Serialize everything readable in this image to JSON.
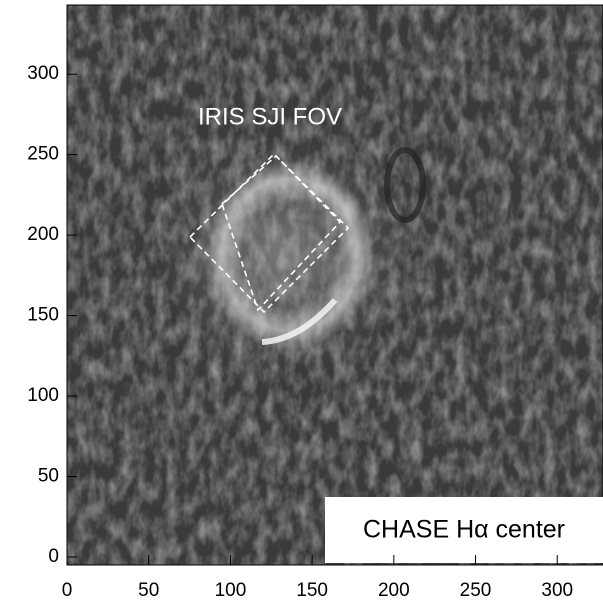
{
  "chart_data": {
    "type": "image",
    "annotations": [
      "IRIS SJI FOV",
      "CHASE Hα center"
    ],
    "xlim": [
      0,
      328
    ],
    "ylim": [
      -5,
      343
    ],
    "xticks": [
      0,
      50,
      100,
      150,
      200,
      250,
      300
    ],
    "yticks": [
      0,
      50,
      100,
      150,
      200,
      250,
      300
    ]
  }
}
